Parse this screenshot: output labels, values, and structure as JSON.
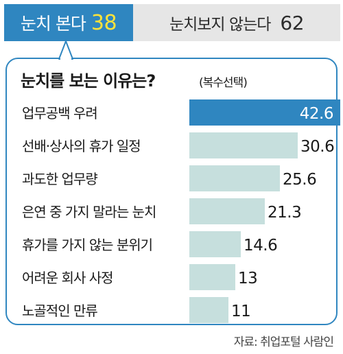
{
  "tabs": {
    "yes_label": "눈치 본다",
    "yes_value": "38",
    "no_label": "눈치보지 않는다",
    "no_value": "62"
  },
  "title": "눈치를 보는 이유는?",
  "subtitle": "(복수선택)",
  "source": "자료: 취업포털 사람인",
  "colors": {
    "accent": "#2f86c0",
    "highlight_number": "#ffe33a",
    "bar": "#c6dfdd",
    "bar_highlight": "#2f86c0",
    "tab_inactive": "#e6e6e6"
  },
  "chart_data": {
    "type": "bar",
    "orientation": "horizontal",
    "categories": [
      "업무공백 우려",
      "선배·상사의 휴가 일정",
      "과도한 업무량",
      "은연 중 가지 말라는 눈치",
      "휴가를 가지 않는 분위기",
      "어려운 회사 사정",
      "노골적인 만류"
    ],
    "values": [
      42.6,
      30.6,
      25.6,
      21.3,
      14.6,
      13,
      11
    ],
    "value_labels": [
      "42.6",
      "30.6",
      "25.6",
      "21.3",
      "14.6",
      "13",
      "11"
    ],
    "title": "눈치를 보는 이유는?",
    "xlim": [
      0,
      42.6
    ],
    "grid": false,
    "legend": "none"
  }
}
